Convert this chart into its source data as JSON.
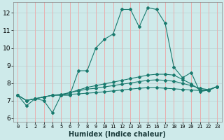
{
  "xlabel": "Humidex (Indice chaleur)",
  "bg_color": "#ceeaea",
  "grid_color_h": "#c0d8d8",
  "grid_color_v": "#e8b0b0",
  "line_color": "#1a7a6e",
  "xlim": [
    -0.5,
    23.5
  ],
  "ylim": [
    5.8,
    12.6
  ],
  "xticks": [
    0,
    1,
    2,
    3,
    4,
    5,
    6,
    7,
    8,
    9,
    10,
    11,
    12,
    13,
    14,
    15,
    16,
    17,
    18,
    19,
    20,
    21,
    22,
    23
  ],
  "yticks": [
    6,
    7,
    8,
    9,
    10,
    11,
    12
  ],
  "series": [
    [
      7.3,
      6.7,
      7.1,
      7.0,
      6.3,
      7.3,
      7.3,
      8.7,
      8.7,
      10.0,
      10.5,
      10.8,
      12.2,
      12.2,
      11.2,
      12.3,
      12.2,
      11.4,
      8.9,
      8.3,
      8.6,
      7.5,
      7.6,
      7.8
    ],
    [
      7.3,
      7.0,
      7.1,
      7.2,
      7.3,
      7.3,
      7.45,
      7.6,
      7.75,
      7.85,
      7.95,
      8.05,
      8.15,
      8.25,
      8.35,
      8.45,
      8.5,
      8.5,
      8.45,
      8.2,
      7.95,
      7.6,
      7.6,
      7.8
    ],
    [
      7.3,
      7.0,
      7.1,
      7.2,
      7.3,
      7.35,
      7.45,
      7.55,
      7.65,
      7.7,
      7.78,
      7.85,
      7.93,
      8.0,
      8.08,
      8.15,
      8.18,
      8.15,
      8.1,
      7.98,
      7.85,
      7.7,
      7.62,
      7.8
    ],
    [
      7.3,
      7.0,
      7.1,
      7.2,
      7.3,
      7.32,
      7.35,
      7.38,
      7.42,
      7.45,
      7.5,
      7.55,
      7.6,
      7.65,
      7.7,
      7.73,
      7.73,
      7.7,
      7.67,
      7.63,
      7.6,
      7.57,
      7.57,
      7.8
    ]
  ]
}
